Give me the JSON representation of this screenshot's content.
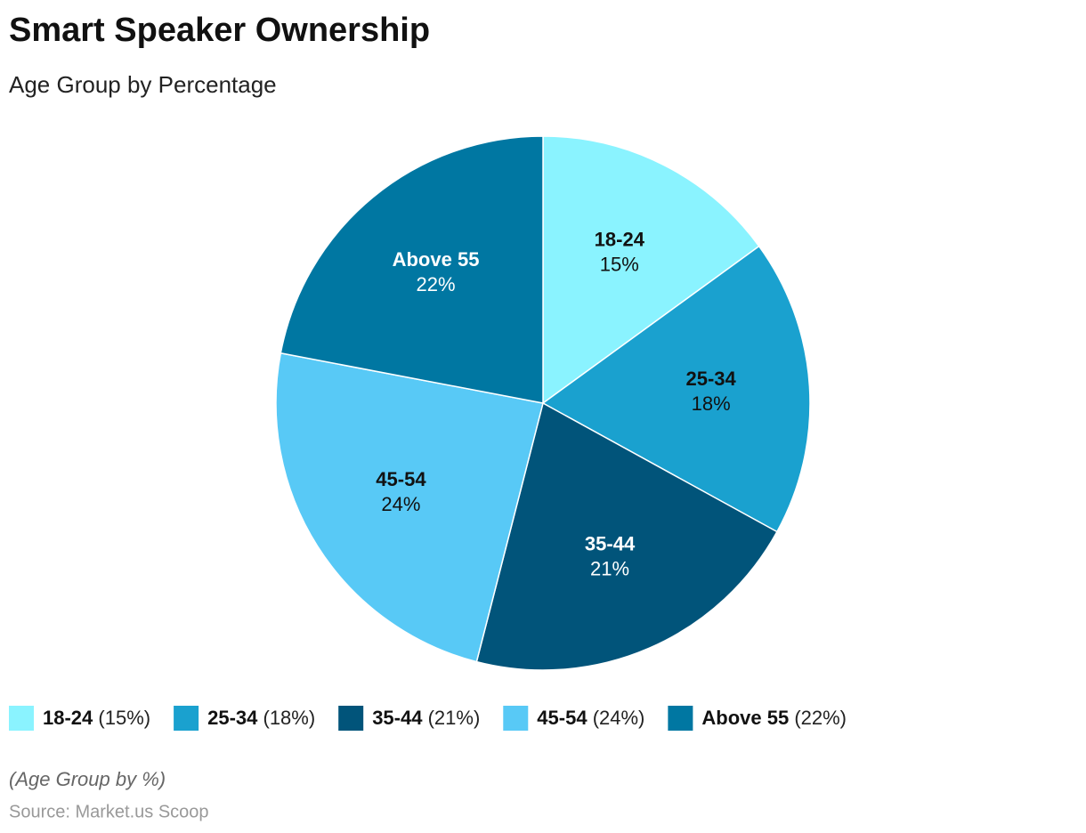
{
  "chart_data": {
    "type": "pie",
    "title": "Smart Speaker Ownership",
    "subtitle": "Age Group by Percentage",
    "categories": [
      "18-24",
      "25-34",
      "35-44",
      "45-54",
      "Above 55"
    ],
    "values": [
      15,
      18,
      21,
      24,
      22
    ],
    "value_labels": [
      "15%",
      "18%",
      "21%",
      "24%",
      "22%"
    ],
    "legend_labels": [
      "(15%)",
      "(18%)",
      "(21%)",
      "(24%)",
      "(22%)"
    ],
    "colors": [
      "#8af3ff",
      "#1aa1cf",
      "#01547a",
      "#58c9f6",
      "#0077a2"
    ],
    "note": "(Age Group by %)",
    "source": "Source: Market.us Scoop"
  }
}
